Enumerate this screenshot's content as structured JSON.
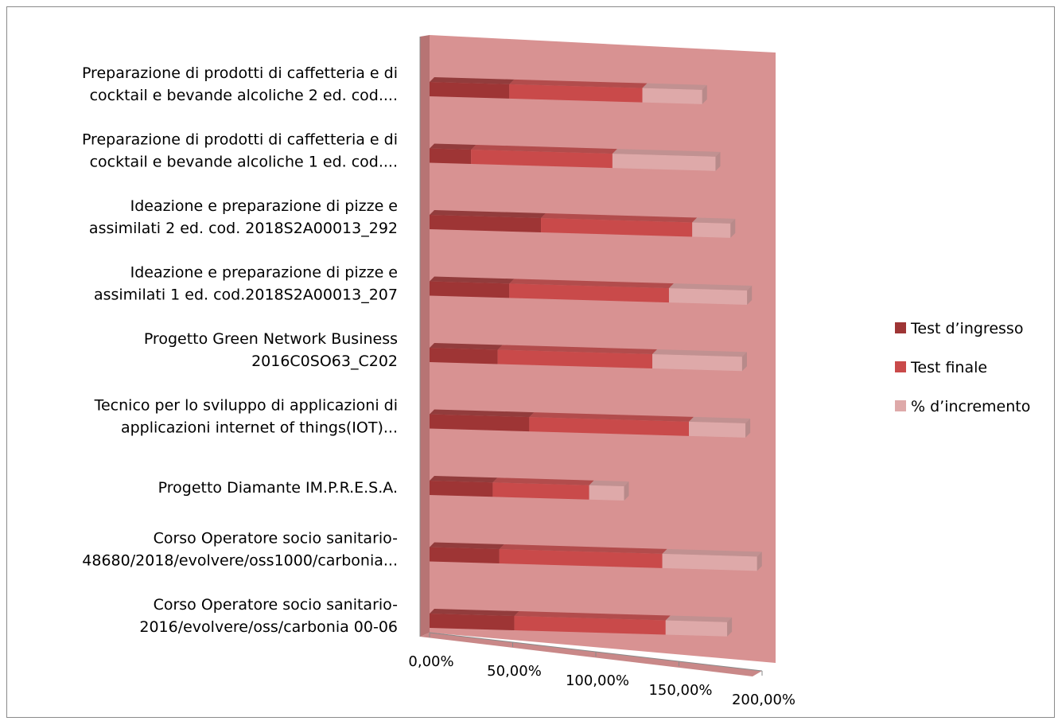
{
  "chart_data": {
    "type": "bar",
    "orientation": "horizontal",
    "stacked": true,
    "three_d": true,
    "categories": [
      [
        "Preparazione di prodotti di caffetteria e di",
        "cocktail e bevande alcoliche 2 ed. cod...."
      ],
      [
        "Preparazione di prodotti di caffetteria e di",
        "cocktail e bevande alcoliche 1 ed. cod...."
      ],
      [
        "Ideazione e preparazione di pizze e",
        "assimilati 2 ed. cod. 2018S2A00013_292"
      ],
      [
        "Ideazione e preparazione di pizze e",
        "assimilati 1 ed. cod.2018S2A00013_207"
      ],
      [
        "Progetto Green Network Business",
        "2016C0SO63_C202"
      ],
      [
        "Tecnico per lo sviluppo di applicazioni di",
        "applicazioni internet of things(IOT)..."
      ],
      [
        "Progetto Diamante  IM.P.R.E.S.A."
      ],
      [
        "Corso Operatore socio sanitario-",
        "48680/2018/evolvere/oss1000/carbonia..."
      ],
      [
        "Corso Operatore socio sanitario-",
        "2016/evolvere/oss/carbonia 00-06"
      ]
    ],
    "series": [
      {
        "name": "Test d’ingresso",
        "color": "#9e3535",
        "values": [
          0.48,
          0.25,
          0.67,
          0.48,
          0.41,
          0.6,
          0.38,
          0.42,
          0.51
        ]
      },
      {
        "name": "Test finale",
        "color": "#c94a4a",
        "values": [
          0.8,
          0.85,
          0.91,
          0.96,
          0.93,
          0.96,
          0.58,
          0.98,
          0.91
        ]
      },
      {
        "name": "% d’incremento",
        "color": "#dea9a9",
        "values": [
          0.36,
          0.62,
          0.23,
          0.47,
          0.54,
          0.34,
          0.21,
          0.57,
          0.37
        ]
      }
    ],
    "x_ticks": [
      "0,00%",
      "50,00%",
      "100,00%",
      "150,00%",
      "200,00%"
    ],
    "xlim": [
      0,
      2
    ],
    "legend_position": "right",
    "wall_color": "#d89292"
  }
}
